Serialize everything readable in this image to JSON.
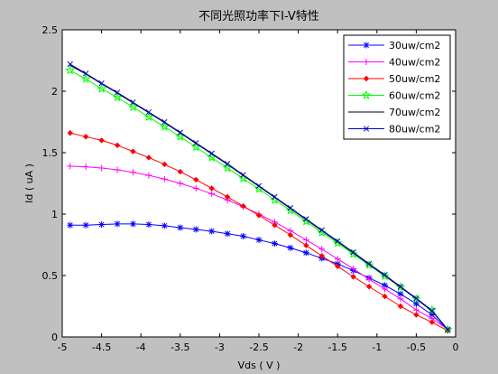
{
  "chart_data": {
    "type": "line",
    "title": "不同光照功率下I-V特性",
    "xlabel": "Vds ( V )",
    "ylabel": "Id ( uA )",
    "xlim": [
      -5,
      0
    ],
    "ylim": [
      0,
      2.5
    ],
    "xticks": [
      "-5",
      "-4.5",
      "-4",
      "-3.5",
      "-3",
      "-2.5",
      "-2",
      "-1.5",
      "-1",
      "-0.5",
      "0"
    ],
    "yticks": [
      "0",
      "0.5",
      "1",
      "1.5",
      "2",
      "2.5"
    ],
    "grid": false,
    "legend_position": "top-right",
    "x": [
      -4.9,
      -4.7,
      -4.5,
      -4.3,
      -4.1,
      -3.9,
      -3.7,
      -3.5,
      -3.3,
      -3.1,
      -2.9,
      -2.7,
      -2.5,
      -2.3,
      -2.1,
      -1.9,
      -1.7,
      -1.5,
      -1.3,
      -1.1,
      -0.9,
      -0.7,
      -0.5,
      -0.3,
      -0.1
    ],
    "series": [
      {
        "name": "30uw/cm2",
        "color": "#0000ff",
        "marker": "asterisk",
        "values": [
          0.91,
          0.91,
          0.915,
          0.92,
          0.92,
          0.915,
          0.905,
          0.89,
          0.875,
          0.86,
          0.84,
          0.82,
          0.79,
          0.76,
          0.725,
          0.685,
          0.64,
          0.595,
          0.54,
          0.48,
          0.42,
          0.35,
          0.27,
          0.18,
          0.06
        ]
      },
      {
        "name": "40uw/cm2",
        "color": "#ff00ff",
        "marker": "plus",
        "values": [
          1.39,
          1.385,
          1.375,
          1.36,
          1.34,
          1.315,
          1.285,
          1.25,
          1.21,
          1.165,
          1.115,
          1.06,
          1.0,
          0.935,
          0.865,
          0.79,
          0.715,
          0.635,
          0.555,
          0.47,
          0.39,
          0.31,
          0.22,
          0.15,
          0.06
        ]
      },
      {
        "name": "50uw/cm2",
        "color": "#ff0000",
        "marker": "diamond",
        "values": [
          1.66,
          1.63,
          1.6,
          1.56,
          1.51,
          1.46,
          1.405,
          1.345,
          1.28,
          1.21,
          1.14,
          1.065,
          0.99,
          0.91,
          0.83,
          0.745,
          0.66,
          0.575,
          0.49,
          0.41,
          0.33,
          0.25,
          0.18,
          0.12,
          0.05
        ]
      },
      {
        "name": "60uw/cm2",
        "color": "#00ff00",
        "marker": "star",
        "values": [
          2.17,
          2.1,
          2.02,
          1.95,
          1.87,
          1.79,
          1.71,
          1.63,
          1.545,
          1.46,
          1.375,
          1.29,
          1.205,
          1.115,
          1.03,
          0.94,
          0.85,
          0.765,
          0.675,
          0.585,
          0.495,
          0.405,
          0.31,
          0.22,
          0.06
        ]
      },
      {
        "name": "70uw/cm2",
        "color": "#000000",
        "marker": "none",
        "values": [
          2.21,
          2.14,
          2.06,
          1.985,
          1.905,
          1.825,
          1.745,
          1.66,
          1.575,
          1.49,
          1.405,
          1.315,
          1.225,
          1.135,
          1.045,
          0.955,
          0.865,
          0.775,
          0.685,
          0.59,
          0.5,
          0.405,
          0.31,
          0.21,
          0.06
        ]
      },
      {
        "name": "80uw/cm2",
        "color": "#0000cc",
        "marker": "x",
        "values": [
          2.22,
          2.145,
          2.065,
          1.99,
          1.91,
          1.83,
          1.75,
          1.665,
          1.58,
          1.495,
          1.41,
          1.32,
          1.23,
          1.14,
          1.05,
          0.96,
          0.87,
          0.78,
          0.69,
          0.595,
          0.505,
          0.41,
          0.315,
          0.215,
          0.06
        ]
      }
    ]
  }
}
